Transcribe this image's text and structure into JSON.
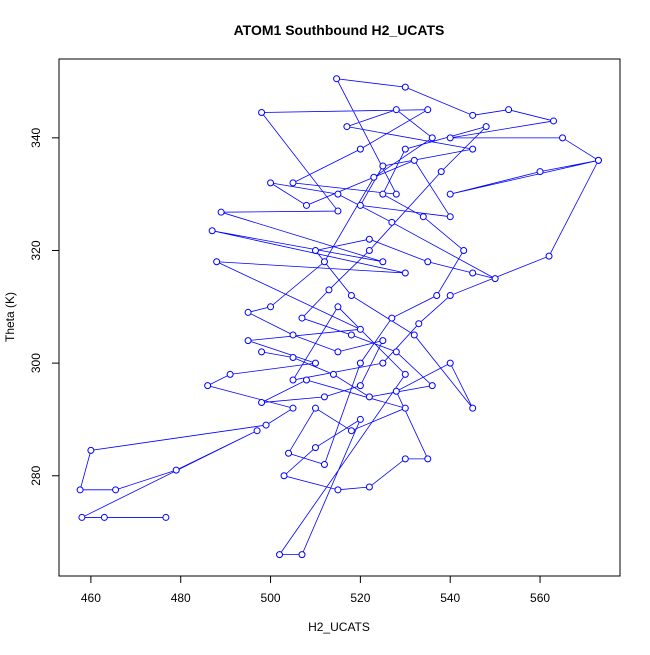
{
  "chart_data": {
    "type": "line",
    "title": "ATOM1 Southbound H2_UCATS",
    "x_label": "H2_UCATS",
    "y_label": "Theta (K)",
    "color": "#0000ff",
    "markers": true,
    "x": [
      476.7,
      463,
      458,
      497,
      479,
      465.5,
      457.6,
      460,
      499,
      505,
      486,
      491,
      510,
      495,
      520,
      488,
      530,
      487,
      525,
      489,
      515,
      498,
      535,
      520,
      505,
      528,
      514.7,
      530,
      545,
      553,
      563,
      540,
      565,
      573,
      560,
      540,
      573,
      562,
      540,
      533,
      525,
      505,
      515,
      530,
      502,
      507,
      520,
      510,
      503,
      515,
      522,
      530,
      535,
      528,
      540,
      545,
      532,
      518,
      510,
      522,
      535,
      545,
      550,
      527,
      515,
      500,
      508,
      532,
      540,
      520,
      525,
      545,
      517,
      528,
      536,
      523,
      512,
      500,
      495,
      505,
      515,
      525,
      520,
      512,
      498,
      508,
      530,
      518,
      510,
      504,
      512,
      520,
      527,
      537,
      543,
      534,
      525,
      530,
      548,
      538,
      522,
      513,
      507,
      518,
      528,
      536,
      522,
      514,
      505,
      498
    ],
    "values": [
      272.6,
      272.6,
      272.6,
      288,
      281,
      277.5,
      277.5,
      284.5,
      289,
      292,
      296,
      298,
      300,
      304,
      306,
      318,
      316,
      323.5,
      318,
      326.8,
      327,
      344.5,
      345,
      338,
      332,
      330,
      350.5,
      349,
      344,
      345,
      343,
      340,
      340,
      336,
      334,
      330,
      336,
      319,
      312,
      307,
      300,
      297,
      310,
      298,
      266,
      266,
      290,
      285,
      280,
      277.5,
      278,
      283,
      283,
      295,
      300,
      292,
      305,
      312,
      320,
      322,
      318,
      316,
      315,
      325,
      330,
      332,
      328,
      336,
      326,
      328,
      335,
      338,
      342,
      345,
      340,
      333,
      318,
      310,
      309,
      305,
      302,
      304,
      296,
      294,
      293,
      297,
      292,
      288,
      292,
      284,
      282,
      300,
      308,
      312,
      320,
      326,
      330,
      338,
      342,
      334,
      320,
      313,
      308,
      305,
      302,
      296,
      294,
      298,
      301,
      302
    ],
    "xlim": [
      452.9,
      577.8
    ],
    "ylim": [
      262.2,
      354.0
    ],
    "xticks": [
      460,
      480,
      500,
      520,
      540,
      560
    ],
    "yticks": [
      280,
      300,
      320,
      340
    ]
  }
}
